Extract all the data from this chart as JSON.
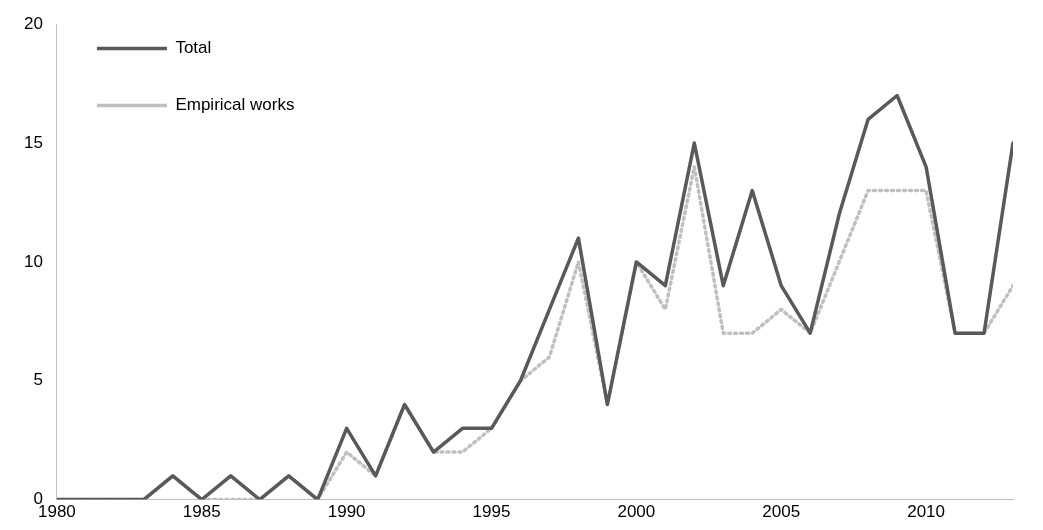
{
  "chart_data": {
    "type": "line",
    "x": [
      1980,
      1981,
      1982,
      1983,
      1984,
      1985,
      1986,
      1987,
      1988,
      1989,
      1990,
      1991,
      1992,
      1993,
      1994,
      1995,
      1996,
      1997,
      1998,
      1999,
      2000,
      2001,
      2002,
      2003,
      2004,
      2005,
      2006,
      2007,
      2008,
      2009,
      2010,
      2011,
      2012,
      2013
    ],
    "series": [
      {
        "name": "Total",
        "color": "#595959",
        "line_style": "solid",
        "values": [
          0,
          0,
          0,
          0,
          1,
          0,
          1,
          0,
          1,
          0,
          3,
          1,
          4,
          2,
          3,
          3,
          5,
          8,
          11,
          4,
          10,
          9,
          15,
          9,
          13,
          9,
          7,
          12,
          16,
          17,
          14,
          7,
          7,
          15
        ]
      },
      {
        "name": "Empirical works",
        "color": "#bfbfbf",
        "line_style": "dotted",
        "values": [
          0,
          0,
          0,
          0,
          1,
          0,
          0,
          0,
          1,
          0,
          2,
          1,
          4,
          2,
          2,
          3,
          5,
          6,
          10,
          4,
          10,
          8,
          14,
          7,
          7,
          8,
          7,
          10,
          13,
          13,
          13,
          7,
          7,
          9
        ]
      }
    ],
    "xlim": [
      1980,
      2013
    ],
    "xticks": [
      1980,
      1985,
      1990,
      1995,
      2000,
      2005,
      2010
    ],
    "ylim": [
      0,
      20
    ],
    "yticks": [
      0,
      5,
      10,
      15,
      20
    ],
    "grid": false,
    "legend": "top left",
    "marker": "none"
  }
}
